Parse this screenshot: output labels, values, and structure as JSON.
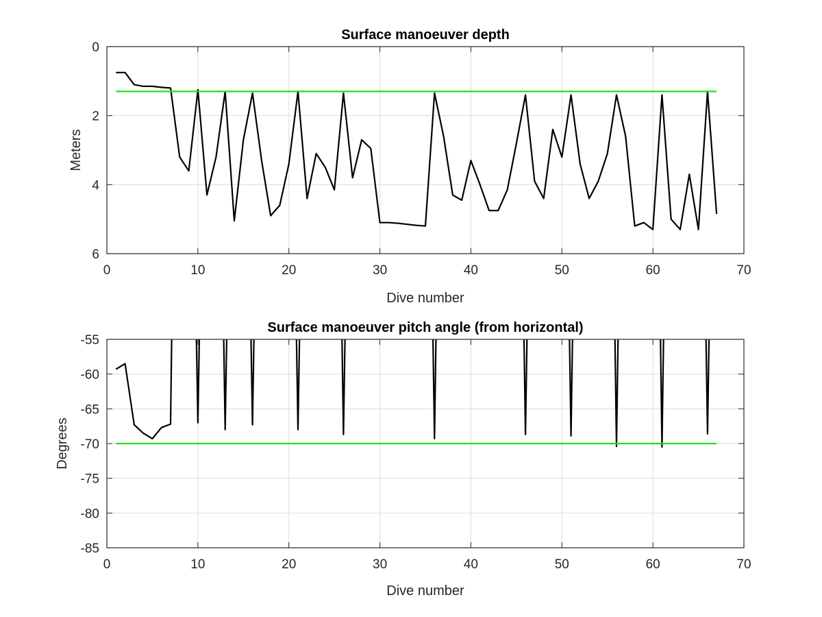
{
  "chart_data": [
    {
      "type": "line",
      "title": "Surface manoeuver depth",
      "xlabel": "Dive number",
      "ylabel": "Meters",
      "xlim": [
        0,
        70
      ],
      "ylim": [
        0,
        6
      ],
      "y_reversed": true,
      "grid": true,
      "xticks": [
        0,
        10,
        20,
        30,
        40,
        50,
        60,
        70
      ],
      "yticks": [
        0,
        2,
        4,
        6
      ],
      "series": [
        {
          "color": "#000000",
          "x": [
            1,
            2,
            3,
            4,
            5,
            6,
            7,
            8,
            9,
            10,
            11,
            12,
            13,
            14,
            15,
            16,
            17,
            18,
            19,
            20,
            21,
            22,
            23,
            24,
            25,
            26,
            27,
            28,
            29,
            30,
            31,
            32,
            33,
            34,
            35,
            36,
            37,
            38,
            39,
            40,
            41,
            42,
            43,
            44,
            45,
            46,
            47,
            48,
            49,
            50,
            51,
            52,
            53,
            54,
            55,
            56,
            57,
            58,
            59,
            60,
            61,
            62,
            63,
            64,
            65,
            66,
            67
          ],
          "values": [
            0.75,
            0.75,
            1.1,
            1.15,
            1.15,
            1.18,
            1.2,
            3.2,
            3.6,
            1.25,
            4.3,
            3.2,
            1.3,
            5.05,
            2.7,
            1.35,
            3.3,
            4.9,
            4.6,
            3.4,
            1.3,
            4.4,
            3.1,
            3.5,
            4.15,
            1.35,
            3.8,
            2.7,
            2.95,
            5.1,
            5.1,
            5.12,
            5.15,
            5.18,
            5.2,
            1.35,
            2.6,
            4.3,
            4.45,
            3.3,
            4.0,
            4.75,
            4.75,
            4.15,
            2.8,
            1.4,
            3.9,
            4.4,
            2.4,
            3.2,
            1.4,
            3.4,
            4.4,
            3.9,
            3.1,
            1.4,
            2.6,
            5.2,
            5.1,
            5.3,
            1.4,
            5.0,
            5.3,
            3.7,
            5.3,
            1.3,
            4.85
          ]
        },
        {
          "color": "#22dd22",
          "x": [
            1,
            67
          ],
          "values": [
            1.3,
            1.3
          ]
        }
      ]
    },
    {
      "type": "line",
      "title": "Surface manoeuver pitch angle (from horizontal)",
      "xlabel": "Dive number",
      "ylabel": "Degrees",
      "xlim": [
        0,
        70
      ],
      "ylim": [
        -85,
        -55
      ],
      "y_reversed": false,
      "grid": true,
      "xticks": [
        0,
        10,
        20,
        30,
        40,
        50,
        60,
        70
      ],
      "yticks": [
        -55,
        -60,
        -65,
        -70,
        -75,
        -80,
        -85
      ],
      "series": [
        {
          "color": "#000000",
          "x": [
            1,
            2,
            3,
            4,
            5,
            6,
            7,
            7.15,
            9.8,
            10,
            10.2,
            12.8,
            13,
            13.2,
            15.8,
            16,
            16.2,
            20.8,
            21,
            21.2,
            25.8,
            26,
            26.2,
            35.8,
            36,
            36.2,
            45.8,
            46,
            46.2,
            50.8,
            51,
            51.2,
            55.8,
            56,
            56.2,
            60.8,
            61,
            61.2,
            65.8,
            66,
            66.2
          ],
          "values": [
            -59.3,
            -58.5,
            -67.3,
            -68.5,
            -69.3,
            -67.7,
            -67.2,
            -52,
            -52,
            -67,
            -52,
            -52,
            -68,
            -52,
            -52,
            -67.3,
            -52,
            -52,
            -68,
            -52,
            -52,
            -68.7,
            -52,
            -52,
            -69.3,
            -52,
            -52,
            -68.7,
            -52,
            -52,
            -68.9,
            -52,
            -52,
            -70.4,
            -52,
            -52,
            -70.5,
            -52,
            -52,
            -68.6,
            -52
          ]
        },
        {
          "color": "#22dd22",
          "x": [
            1,
            67
          ],
          "values": [
            -70,
            -70
          ]
        }
      ]
    }
  ]
}
